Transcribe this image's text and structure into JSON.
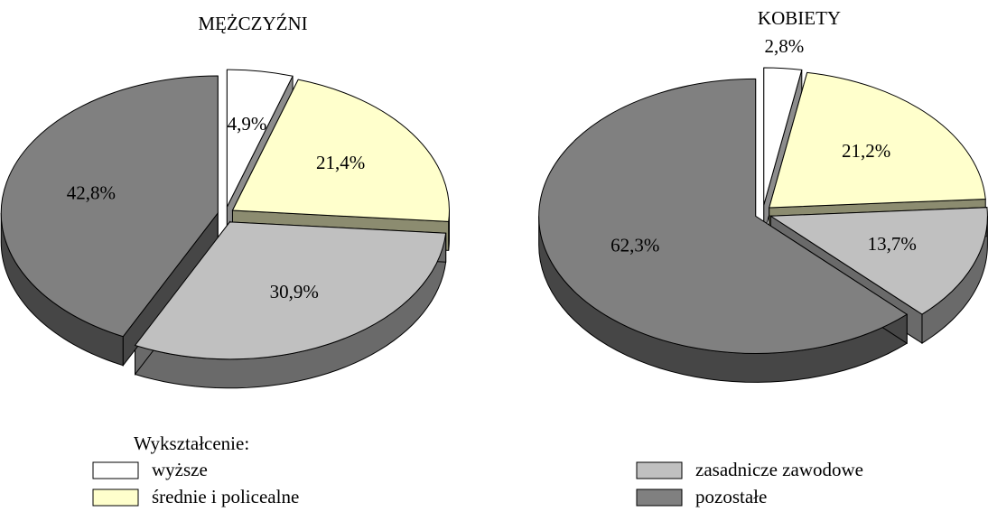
{
  "chart_data": [
    {
      "type": "pie",
      "title": "MĘŻCZYŹNI",
      "values": [
        4.9,
        21.4,
        30.9,
        42.8
      ],
      "value_labels": [
        "4,9%",
        "21,4%",
        "30,9%",
        "42,8%"
      ]
    },
    {
      "type": "pie",
      "title": "KOBIETY",
      "values": [
        2.8,
        21.2,
        13.7,
        62.3
      ],
      "value_labels": [
        "2,8%",
        "21,2%",
        "13,7%",
        "62,3%"
      ]
    }
  ],
  "legend": {
    "title": "Wykształcenie:",
    "categories": [
      "wyższe",
      "średnie i policealne",
      "zasadnicze zawodowe",
      "pozostałe"
    ],
    "colors": [
      "#ffffff",
      "#ffffcc",
      "#c0c0c0",
      "#808080"
    ]
  }
}
